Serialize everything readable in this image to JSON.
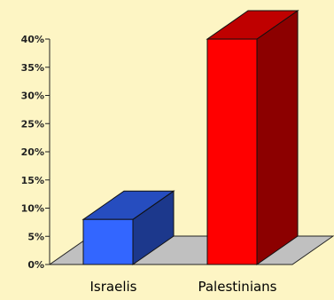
{
  "chart_data": {
    "type": "bar",
    "style": "3d",
    "categories": [
      "Israelis",
      "Palestinians"
    ],
    "values": [
      8,
      40
    ],
    "colors": [
      "#3366ff",
      "#ff0000"
    ],
    "ylim": [
      0,
      40
    ],
    "yticks": [
      "0%",
      "5%",
      "10%",
      "15%",
      "20%",
      "25%",
      "30%",
      "35%",
      "40%"
    ],
    "grid": false,
    "legend": "none",
    "background": "#fdf5c4",
    "floor_color": "#c0c0c0"
  }
}
